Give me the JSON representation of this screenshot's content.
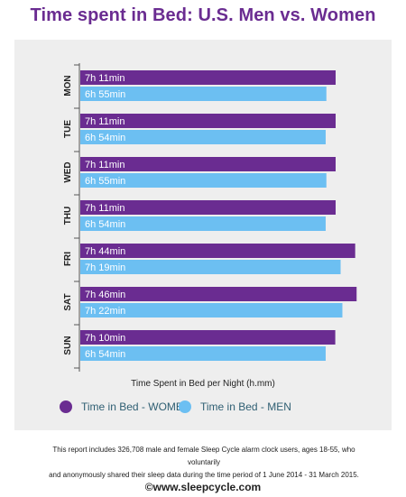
{
  "title": "Time spent in Bed: U.S. Men vs. Women",
  "chart_data": {
    "type": "bar",
    "orientation": "horizontal",
    "categories": [
      "MON",
      "TUE",
      "WED",
      "THU",
      "FRI",
      "SAT",
      "SUN"
    ],
    "series": [
      {
        "name": "Time in Bed - WOMEN",
        "color": "#6a2c91",
        "values": [
          7.18,
          7.18,
          7.18,
          7.18,
          7.73,
          7.77,
          7.17
        ],
        "labels": [
          "7h 11min",
          "7h 11min",
          "7h 11min",
          "7h 11min",
          "7h 44min",
          "7h 46min",
          "7h 10min"
        ]
      },
      {
        "name": "Time in Bed - MEN",
        "color": "#6cbff2",
        "values": [
          6.92,
          6.9,
          6.92,
          6.9,
          7.32,
          7.37,
          6.9
        ],
        "labels": [
          "6h 55min",
          "6h 54min",
          "6h 55min",
          "6h 54min",
          "7h 19min",
          "7h 22min",
          "6h 54min"
        ]
      }
    ],
    "xlabel": "Time Spent in Bed per Night (h.mm)",
    "ylabel": "",
    "grid": false,
    "legend_position": "bottom"
  },
  "footnote_line1": "This report includes 326,708 male and female Sleep Cycle alarm clock users, ages 18-55, who voluntarily",
  "footnote_line2": "and anonymously shared their sleep data during the time period of 1 June 2014 - 31 March 2015.",
  "source": "©www.sleepcycle.com"
}
